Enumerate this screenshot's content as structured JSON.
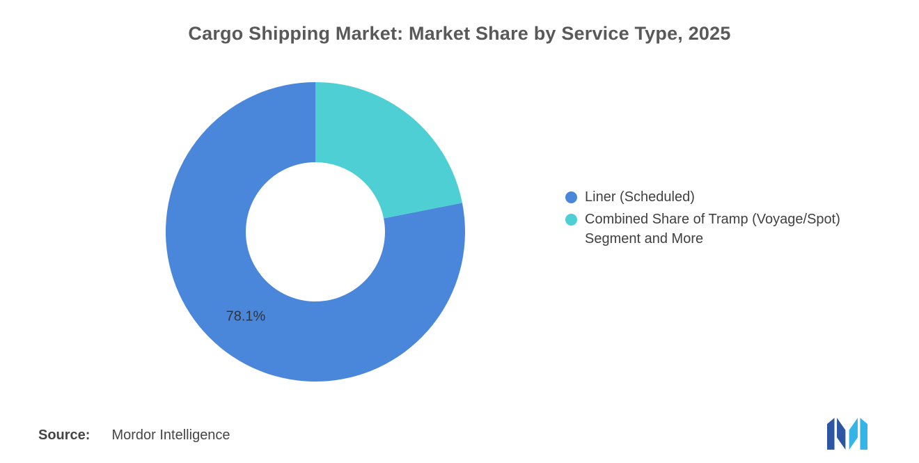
{
  "title": "Cargo Shipping Market: Market Share by Service Type, 2025",
  "chart_data": {
    "type": "pie",
    "subtype": "donut",
    "title": "Cargo Shipping Market: Market Share by Service Type, 2025",
    "legend_position": "right",
    "inner_radius_ratio": 0.465,
    "orientation_note": "second segment starts at 12 o'clock going clockwise; first segment fills the remainder",
    "segments": [
      {
        "label": "Liner (Scheduled)",
        "value": 78.1,
        "color": "#4A87DB",
        "data_label": "78.1%",
        "show_label": true
      },
      {
        "label": "Combined Share of Tramp (Voyage/Spot) Segment and More",
        "value": 21.9,
        "color": "#4DCFD4",
        "data_label": "",
        "show_label": false
      }
    ]
  },
  "legend": {
    "items": [
      {
        "label": "Liner (Scheduled)",
        "color": "#4A87DB"
      },
      {
        "label": "Combined Share of Tramp (Voyage/Spot) Segment and More",
        "color": "#4DCFD4"
      }
    ]
  },
  "data_label_color": "#333333",
  "source": {
    "prefix": "Source:",
    "text": "Mordor Intelligence"
  },
  "logo": {
    "name": "mordor-intelligence-logo",
    "dark_color": "#2C56A4",
    "light_color": "#35B4E8"
  }
}
